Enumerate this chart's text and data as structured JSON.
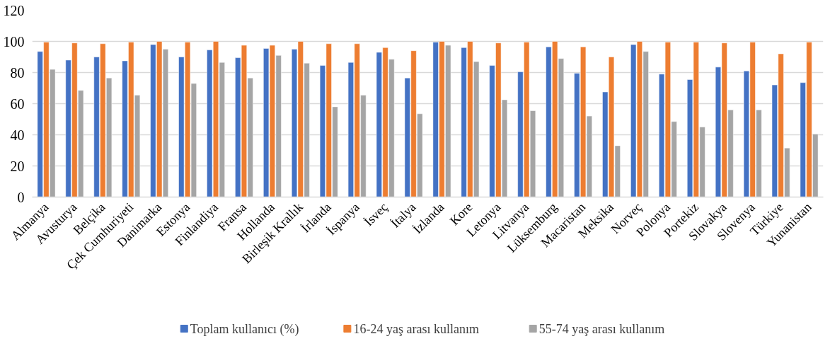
{
  "chart_data": {
    "type": "bar",
    "categories": [
      "Almanya",
      "Avusturya",
      "Belçika",
      "Çek Cumhuriyeti",
      "Danimarka",
      "Estonya",
      "Finlandiya",
      "Fransa",
      "Hollanda",
      "Birleşik Krallık",
      "İrlanda",
      "İspanya",
      "İsveç",
      "İtalya",
      "İzlanda",
      "Kore",
      "Letonya",
      "Litvanya",
      "Lüksemburg",
      "Macaristan",
      "Meksika",
      "Norveç",
      "Polonya",
      "Portekiz",
      "Slovakya",
      "Slovenya",
      "Türkiye",
      "Yunanistan"
    ],
    "series": [
      {
        "name": "Toplam kullanıcı (%)",
        "color": "#4472c4",
        "values": [
          93.5,
          88,
          90,
          87.5,
          98,
          90,
          94.5,
          89.5,
          95.5,
          95,
          84.5,
          86.5,
          93,
          76.5,
          99.5,
          96,
          84.5,
          80.5,
          96.5,
          79.5,
          67.5,
          98,
          79,
          75.5,
          83.5,
          81,
          72,
          73.5
        ]
      },
      {
        "name": "16-24 yaş arası kullanım",
        "color": "#ed7d31",
        "values": [
          99.5,
          99,
          98.5,
          99.5,
          100,
          99.5,
          100,
          97.5,
          97.5,
          100,
          98.5,
          98.5,
          96,
          94,
          100,
          100,
          99,
          99.5,
          100,
          96.5,
          90,
          100,
          99.5,
          99.5,
          99,
          99.5,
          92,
          99.5
        ]
      },
      {
        "name": "55-74 yaş arası kullanım",
        "color": "#a5a5a5",
        "values": [
          82,
          68.5,
          76.5,
          65.5,
          95,
          73,
          86.5,
          76.5,
          91,
          86,
          58,
          65.5,
          88.5,
          53.5,
          97.5,
          87,
          62.5,
          55.5,
          89,
          52,
          33,
          93.5,
          48.5,
          45,
          56,
          56,
          31.5,
          40.5
        ]
      }
    ],
    "ylim": [
      0,
      120
    ],
    "yticks": [
      0,
      20,
      40,
      60,
      80,
      100,
      120
    ],
    "grid": "y",
    "legend": "bottom"
  }
}
